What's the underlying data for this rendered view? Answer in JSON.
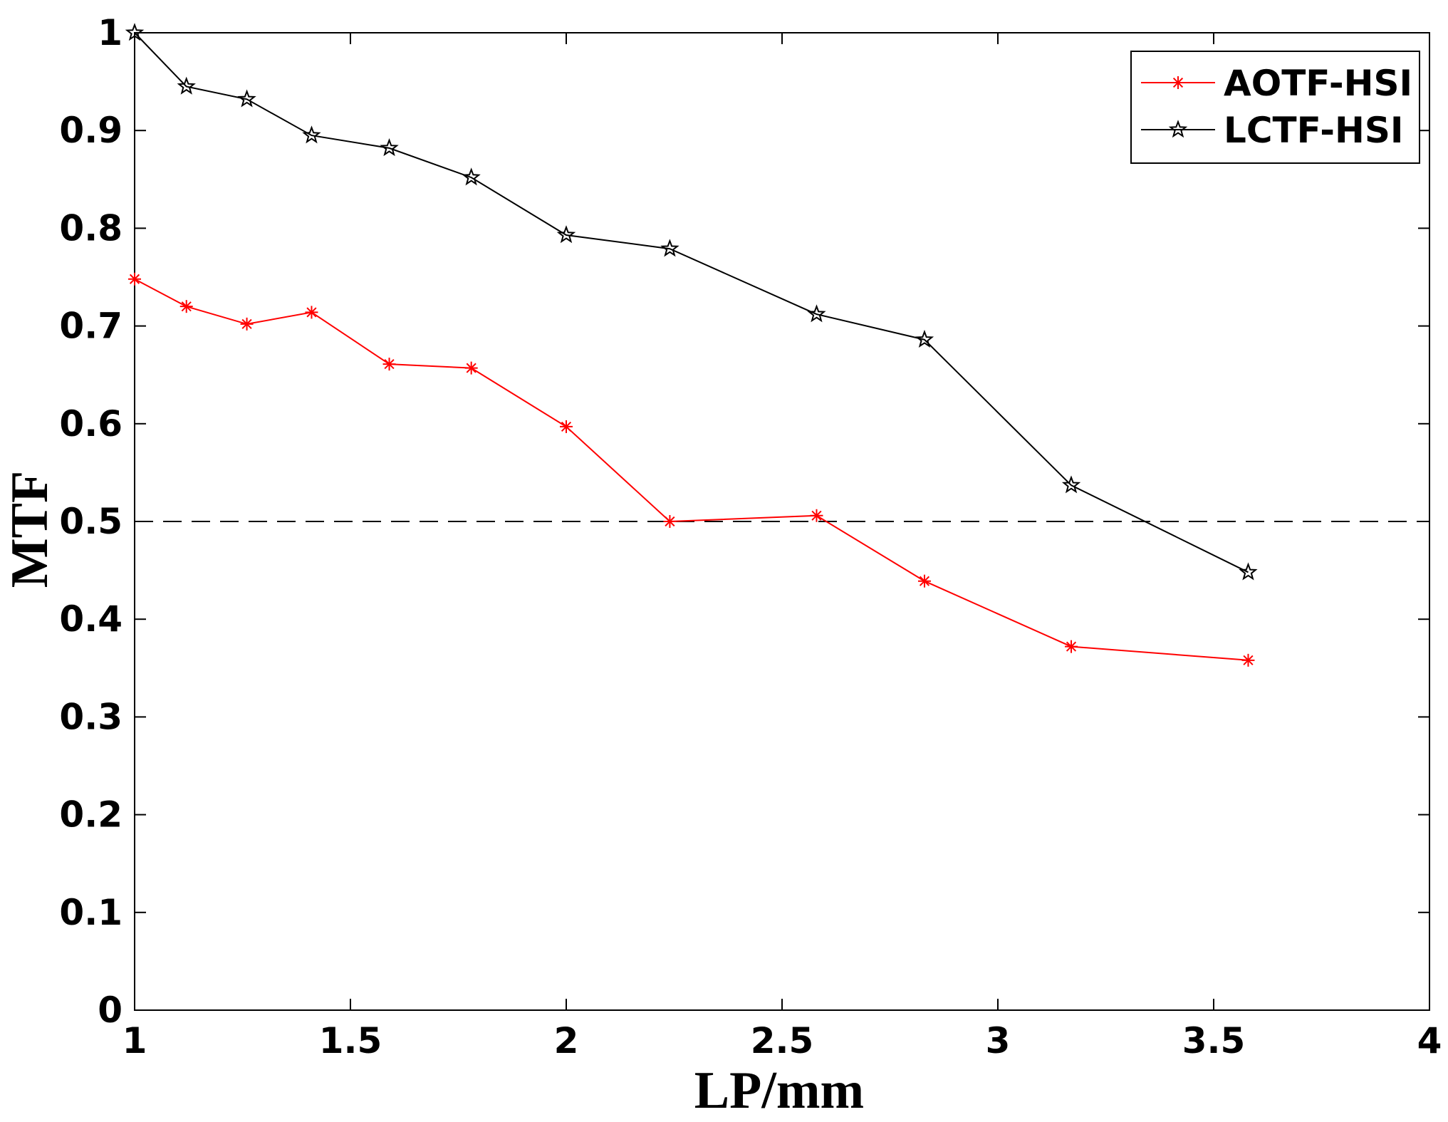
{
  "chart_data": {
    "type": "line",
    "xlabel": "LP/mm",
    "ylabel": "MTF",
    "xlim": [
      1,
      4
    ],
    "ylim": [
      0,
      1
    ],
    "xticks": [
      1,
      1.5,
      2,
      2.5,
      3,
      3.5,
      4
    ],
    "xtick_labels": [
      "1",
      "1.5",
      "2",
      "2.5",
      "3",
      "3.5",
      "4"
    ],
    "yticks": [
      0,
      0.1,
      0.2,
      0.3,
      0.4,
      0.5,
      0.6,
      0.7,
      0.8,
      0.9,
      1
    ],
    "ytick_labels": [
      "0",
      "0.1",
      "0.2",
      "0.3",
      "0.4",
      "0.5",
      "0.6",
      "0.7",
      "0.8",
      "0.9",
      "1"
    ],
    "grid": false,
    "legend_position": "top-right",
    "reference_line": {
      "y": 0.5,
      "style": "dashed",
      "color": "#000000"
    },
    "series": [
      {
        "name": "AOTF-HSI",
        "color": "#ff0000",
        "marker": "asterisk",
        "x": [
          1.0,
          1.12,
          1.26,
          1.41,
          1.59,
          1.78,
          2.0,
          2.24,
          2.58,
          2.83,
          3.17,
          3.58
        ],
        "y": [
          0.748,
          0.72,
          0.702,
          0.714,
          0.661,
          0.657,
          0.597,
          0.5,
          0.506,
          0.439,
          0.372,
          0.358
        ]
      },
      {
        "name": "LCTF-HSI",
        "color": "#000000",
        "marker": "star",
        "x": [
          1.0,
          1.12,
          1.26,
          1.41,
          1.59,
          1.78,
          2.0,
          2.24,
          2.58,
          2.83,
          3.17,
          3.58
        ],
        "y": [
          1.0,
          0.945,
          0.932,
          0.895,
          0.882,
          0.852,
          0.793,
          0.779,
          0.712,
          0.686,
          0.537,
          0.448
        ]
      }
    ]
  }
}
